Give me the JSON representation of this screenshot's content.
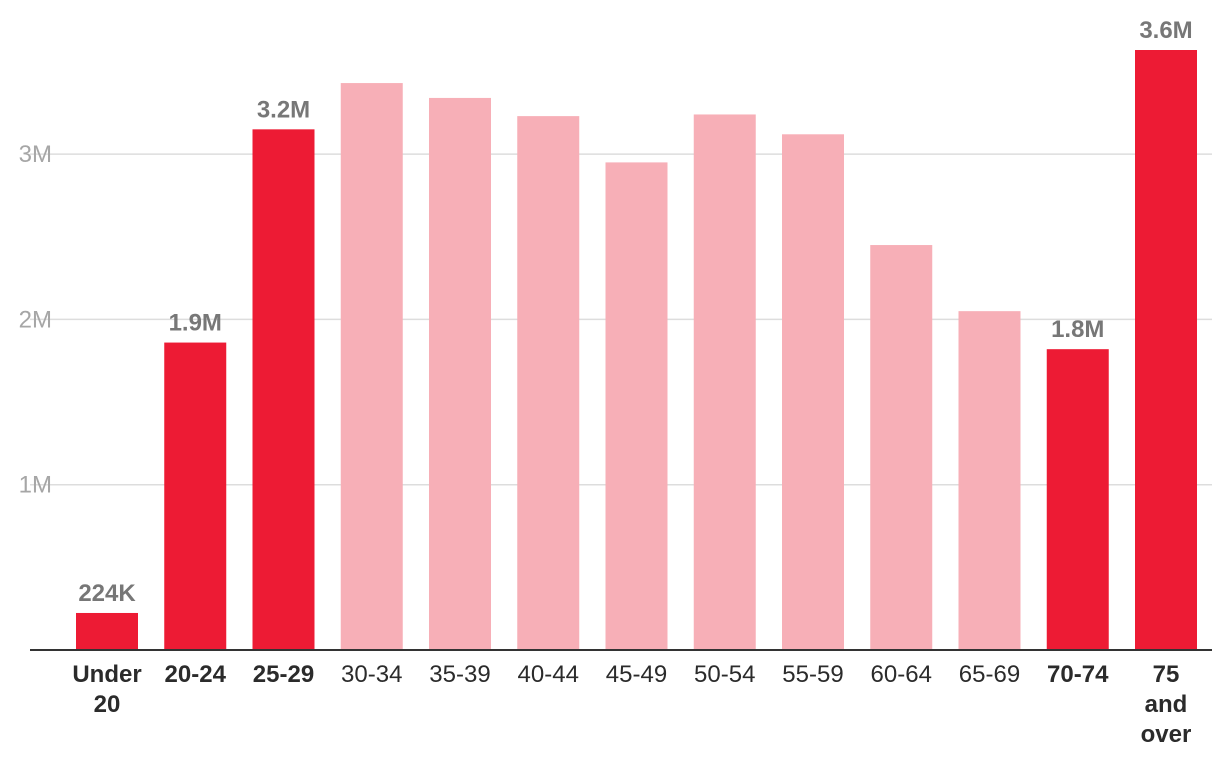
{
  "chart_data": {
    "type": "bar",
    "title": "",
    "xlabel": "",
    "ylabel": "",
    "categories": [
      "Under 20",
      "20-24",
      "25-29",
      "30-34",
      "35-39",
      "40-44",
      "45-49",
      "50-54",
      "55-59",
      "60-64",
      "65-69",
      "70-74",
      "75 and over"
    ],
    "values": [
      224000,
      1860000,
      3150000,
      3430000,
      3340000,
      3230000,
      2950000,
      3240000,
      3120000,
      2450000,
      2050000,
      1820000,
      3630000
    ],
    "highlighted": [
      true,
      true,
      true,
      false,
      false,
      false,
      false,
      false,
      false,
      false,
      false,
      true,
      true
    ],
    "data_labels": [
      "224K",
      "1.9M",
      "3.2M",
      "",
      "",
      "",
      "",
      "",
      "",
      "",
      "",
      "1.8M",
      "3.6M"
    ],
    "y_ticks": [
      1000000,
      2000000,
      3000000
    ],
    "y_tick_labels": [
      "1M",
      "2M",
      "3M"
    ],
    "ylim": [
      0,
      3630000
    ],
    "grid": true,
    "colors": {
      "highlight": "#ed1b34",
      "muted": "#f7afb7",
      "grid": "#dddddd",
      "axis": "#333333",
      "tick_text": "#a6a6a6",
      "value_text": "#777777",
      "category_text": "#2b2b2b"
    }
  }
}
